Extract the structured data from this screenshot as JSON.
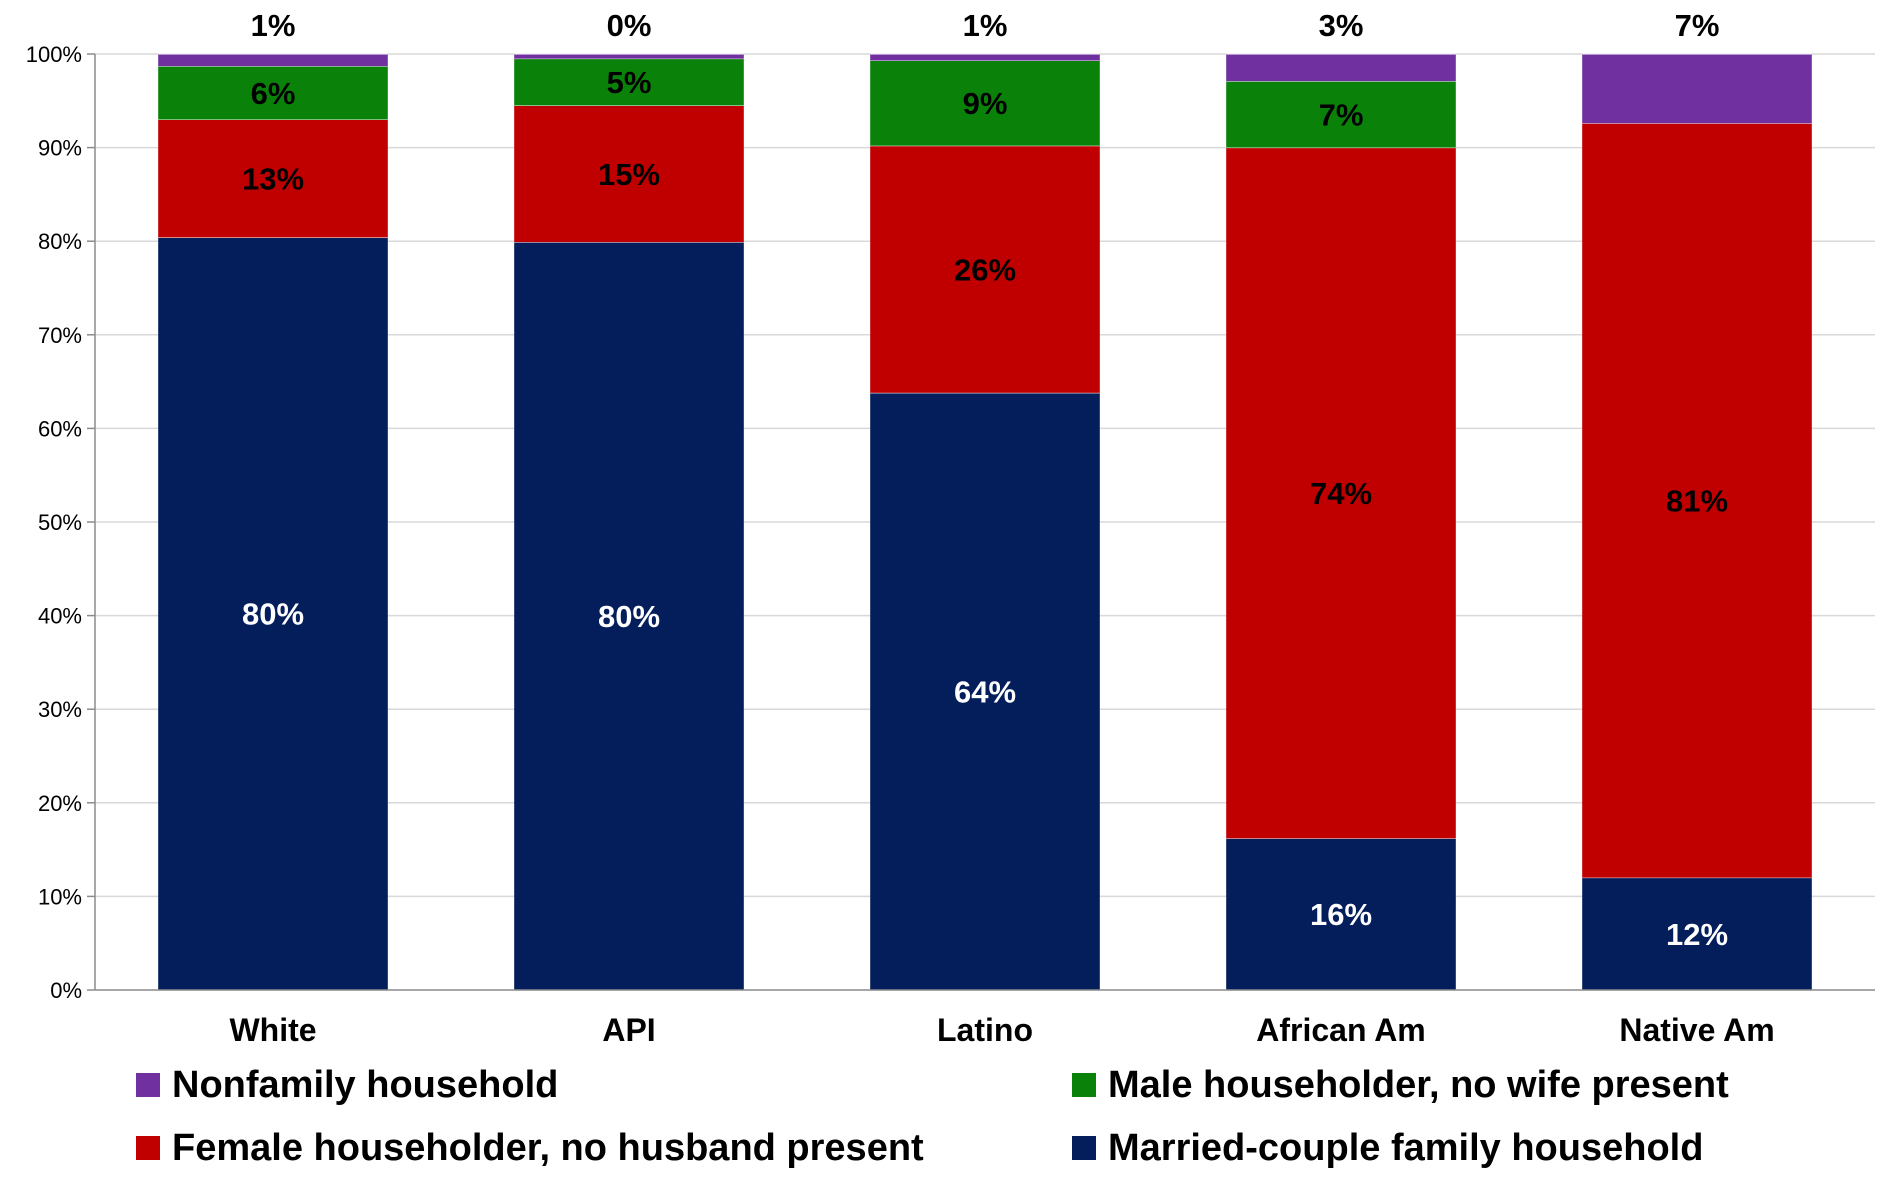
{
  "chart_data": {
    "type": "bar",
    "stacked": true,
    "categories": [
      "White",
      "API",
      "Latino",
      "African Am",
      "Native Am"
    ],
    "series": [
      {
        "name": "Married-couple family household",
        "color": "#041e5c",
        "values": [
          80.4,
          79.9,
          63.8,
          16.2,
          12.0
        ],
        "labels": [
          "80%",
          "80%",
          "64%",
          "16%",
          "12%"
        ],
        "label_color": "#ffffff"
      },
      {
        "name": "Female householder, no husband present",
        "color": "#c00000",
        "values": [
          12.6,
          14.6,
          26.4,
          73.8,
          80.6
        ],
        "labels": [
          "13%",
          "15%",
          "26%",
          "74%",
          "81%"
        ],
        "label_color": "#000000"
      },
      {
        "name": "Male householder, no wife present",
        "color": "#0a820a",
        "values": [
          5.7,
          5.0,
          9.1,
          7.1,
          0
        ],
        "labels": [
          "6%",
          "5%",
          "9%",
          "7%",
          ""
        ],
        "label_color": "#000000"
      },
      {
        "name": "Nonfamily household",
        "color": "#7030a0",
        "values": [
          1.3,
          0.5,
          0.7,
          2.9,
          7.4
        ],
        "labels": [
          "1%",
          "0%",
          "1%",
          "3%",
          "7%"
        ],
        "label_color": "#000000",
        "label_above": true
      }
    ],
    "ylim": [
      0,
      100
    ],
    "yticks": [
      "0%",
      "10%",
      "20%",
      "30%",
      "40%",
      "50%",
      "60%",
      "70%",
      "80%",
      "90%",
      "100%"
    ],
    "grid": true,
    "legend_placement": "bottom",
    "legend_order": [
      "Nonfamily household",
      "Male householder, no wife present",
      "Female householder, no husband present",
      "Married-couple family household"
    ],
    "title": "",
    "xlabel": "",
    "ylabel": ""
  }
}
